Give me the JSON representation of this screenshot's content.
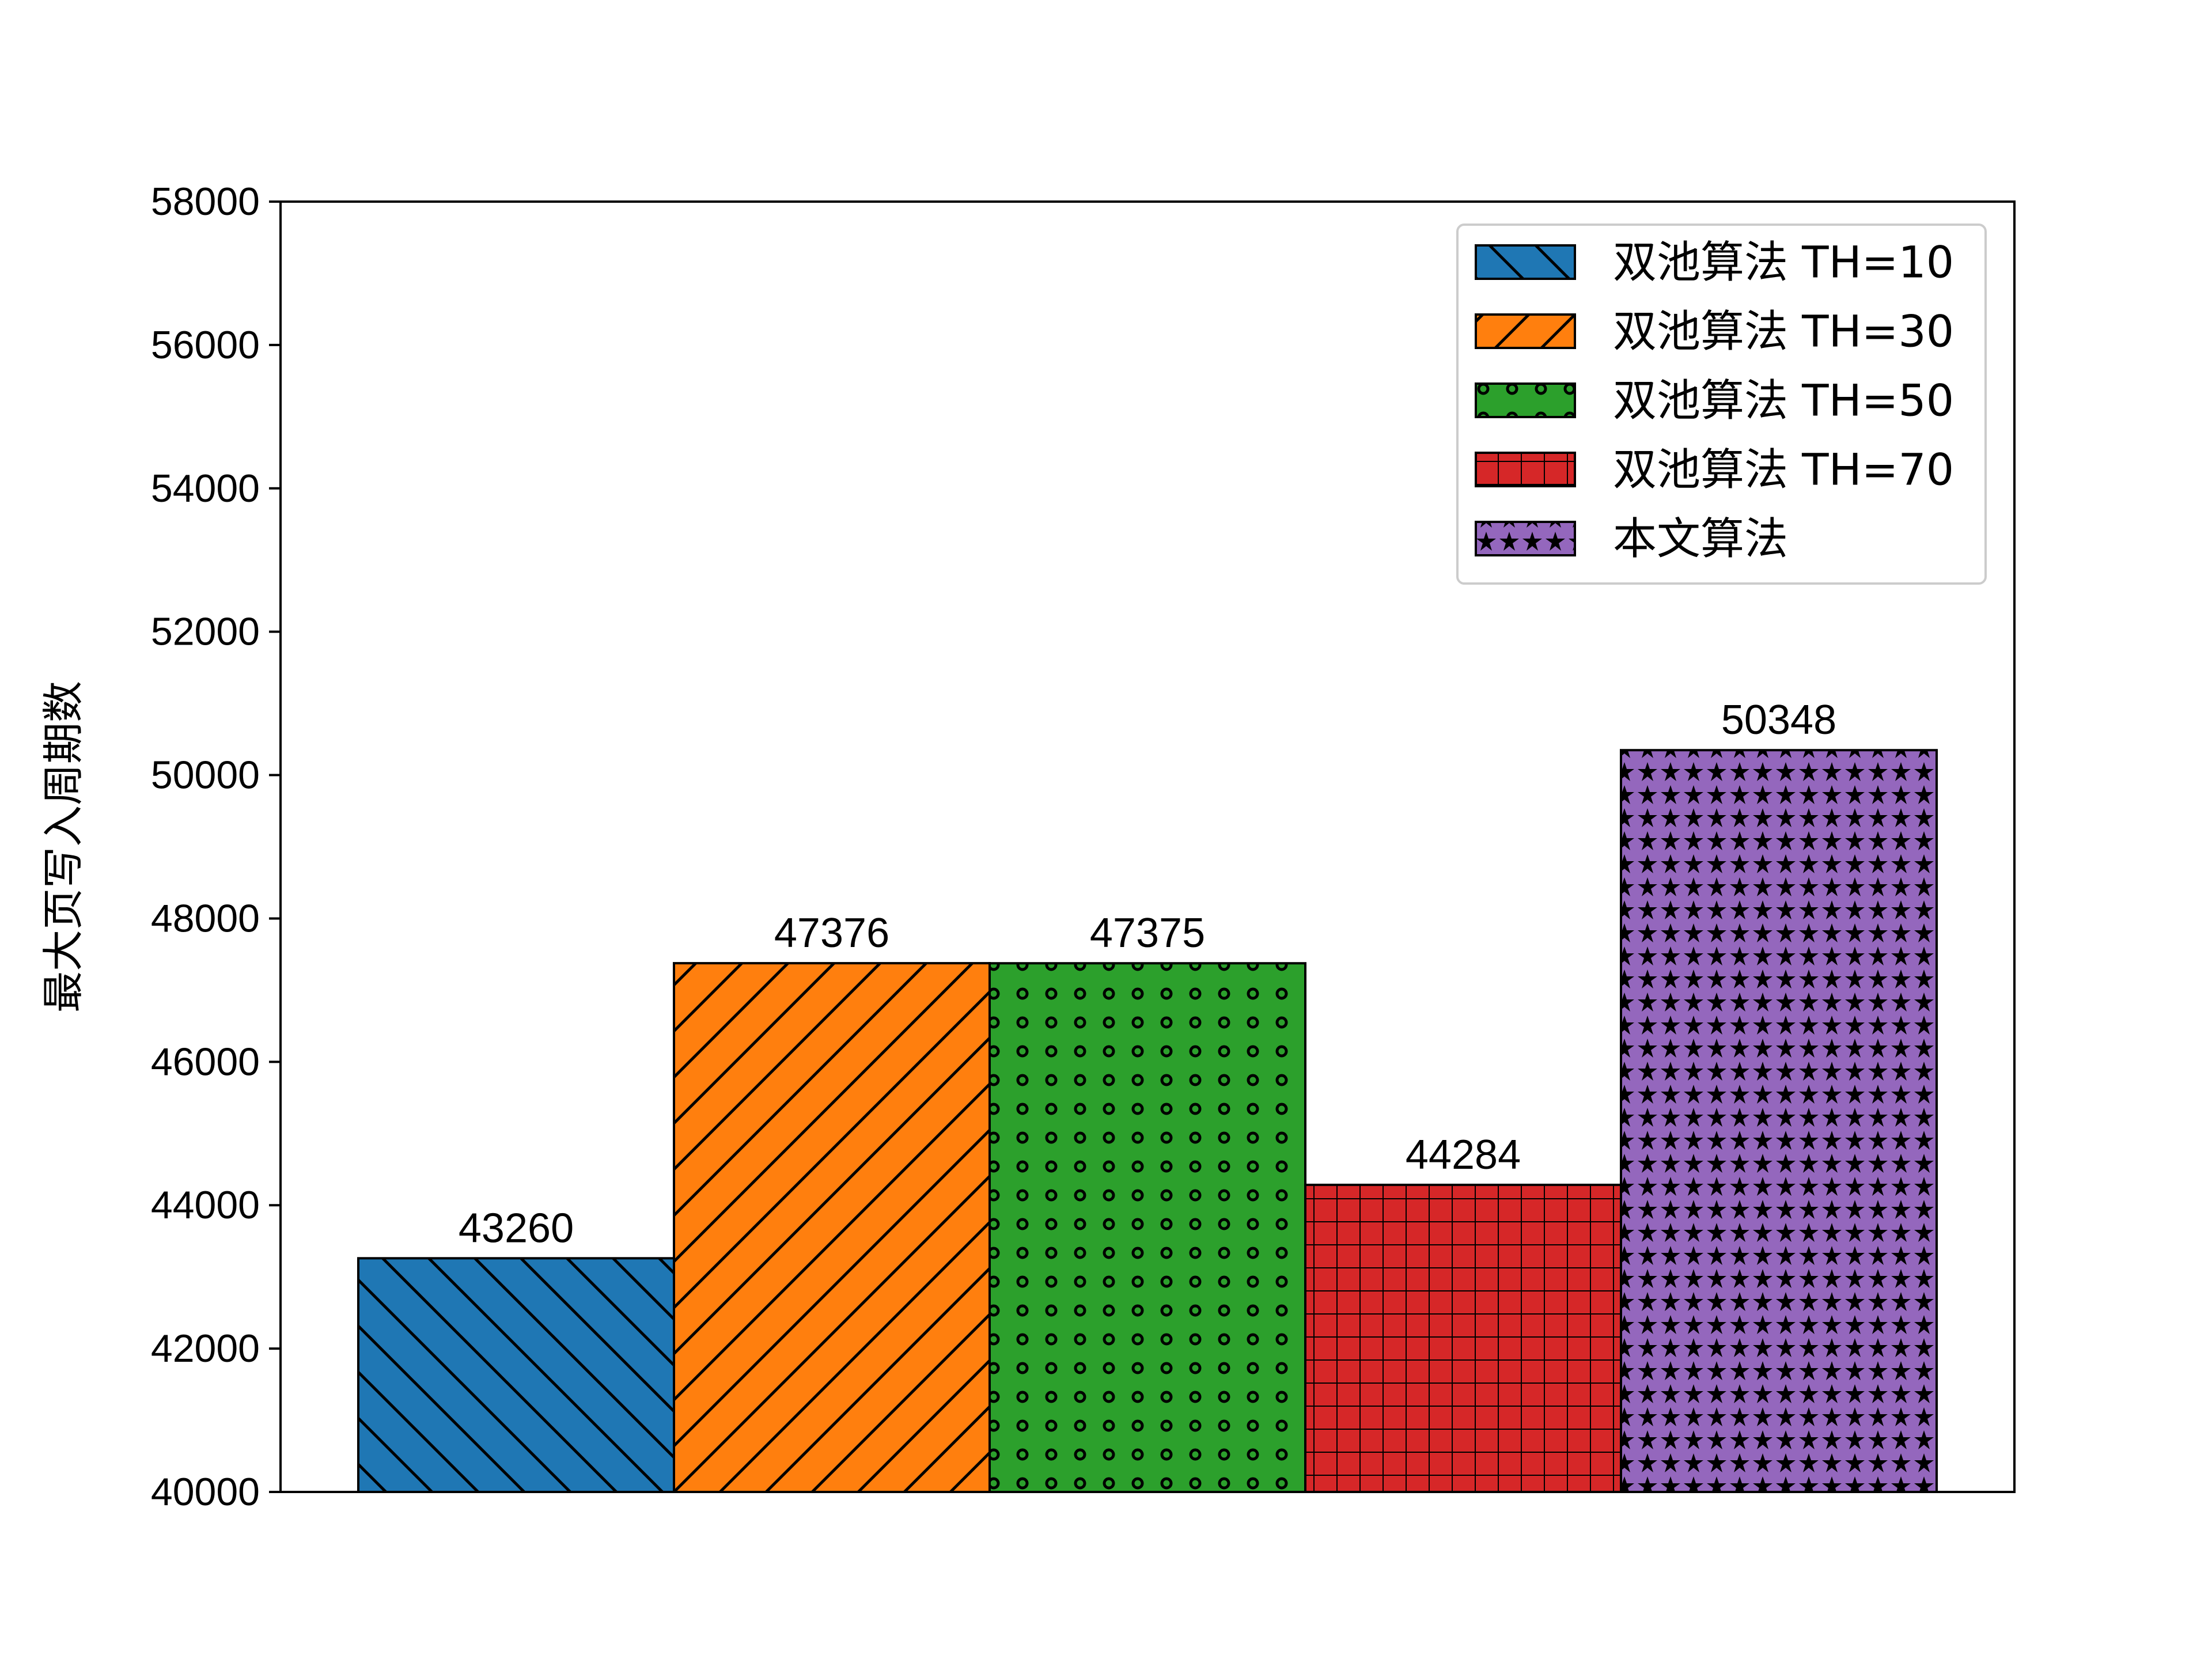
{
  "chart_data": {
    "type": "bar",
    "title": "",
    "xlabel": "",
    "ylabel": "最大页写入周期数",
    "ylim": [
      40000,
      58000
    ],
    "yticks": [
      40000,
      42000,
      44000,
      46000,
      48000,
      50000,
      52000,
      54000,
      56000,
      58000
    ],
    "grid": false,
    "legend_position": "top-right",
    "series": [
      {
        "name": "双池算法 TH=10",
        "value": 43260,
        "value_label": "43260",
        "color": "#1f77b4",
        "hatch": "backslash"
      },
      {
        "name": "双池算法 TH=30",
        "value": 47376,
        "value_label": "47376",
        "color": "#ff7f0e",
        "hatch": "slash"
      },
      {
        "name": "双池算法 TH=50",
        "value": 47375,
        "value_label": "47375",
        "color": "#2ca02c",
        "hatch": "circles"
      },
      {
        "name": "双池算法 TH=70",
        "value": 44284,
        "value_label": "44284",
        "color": "#d62728",
        "hatch": "grid"
      },
      {
        "name": "本文算法",
        "value": 50348,
        "value_label": "50348",
        "color": "#9467bd",
        "hatch": "stars"
      }
    ]
  }
}
